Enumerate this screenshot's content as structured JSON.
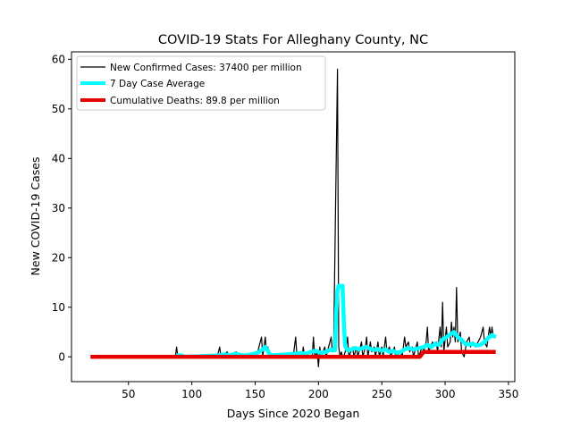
{
  "chart_data": {
    "type": "line",
    "title": "COVID-19 Stats For Alleghany County, NC",
    "xlabel": "Days Since 2020 Began",
    "ylabel": "New COVID-19 Cases",
    "xlim": [
      5,
      355
    ],
    "ylim": [
      -5,
      61.5
    ],
    "xticks": [
      50,
      100,
      150,
      200,
      250,
      300,
      350
    ],
    "yticks": [
      0,
      10,
      20,
      30,
      40,
      50,
      60
    ],
    "grid": false,
    "legend_position": "top-left",
    "series": [
      {
        "name": "New Confirmed Cases: 37400 per million",
        "color": "#000000",
        "points": [
          [
            20,
            0
          ],
          [
            87,
            0
          ],
          [
            88,
            2
          ],
          [
            89,
            0
          ],
          [
            120,
            0
          ],
          [
            122,
            2
          ],
          [
            123,
            0
          ],
          [
            128,
            1
          ],
          [
            129,
            0
          ],
          [
            135,
            1
          ],
          [
            136,
            0
          ],
          [
            148,
            0
          ],
          [
            150,
            1
          ],
          [
            151,
            0
          ],
          [
            155,
            4
          ],
          [
            156,
            0
          ],
          [
            158,
            4
          ],
          [
            159,
            1
          ],
          [
            160,
            2
          ],
          [
            161,
            0
          ],
          [
            180,
            0
          ],
          [
            182,
            4
          ],
          [
            183,
            0
          ],
          [
            187,
            0
          ],
          [
            188,
            2
          ],
          [
            189,
            0
          ],
          [
            195,
            0
          ],
          [
            196,
            4
          ],
          [
            197,
            0
          ],
          [
            199,
            1
          ],
          [
            200,
            -2
          ],
          [
            201,
            2
          ],
          [
            202,
            0
          ],
          [
            205,
            2
          ],
          [
            206,
            0
          ],
          [
            210,
            4
          ],
          [
            211,
            1
          ],
          [
            212,
            2
          ],
          [
            215,
            58
          ],
          [
            216,
            2
          ],
          [
            217,
            0
          ],
          [
            218,
            1
          ],
          [
            219,
            0
          ],
          [
            220,
            0
          ],
          [
            222,
            2
          ],
          [
            223,
            4
          ],
          [
            224,
            0
          ],
          [
            227,
            2
          ],
          [
            228,
            0
          ],
          [
            230,
            2
          ],
          [
            231,
            0
          ],
          [
            234,
            3
          ],
          [
            235,
            0
          ],
          [
            237,
            2
          ],
          [
            238,
            4
          ],
          [
            239,
            0
          ],
          [
            241,
            3
          ],
          [
            242,
            1
          ],
          [
            244,
            2
          ],
          [
            245,
            0
          ],
          [
            247,
            3
          ],
          [
            248,
            0
          ],
          [
            250,
            2
          ],
          [
            251,
            0
          ],
          [
            253,
            4
          ],
          [
            254,
            1
          ],
          [
            256,
            2
          ],
          [
            257,
            0
          ],
          [
            260,
            2
          ],
          [
            261,
            0
          ],
          [
            265,
            1
          ],
          [
            266,
            0
          ],
          [
            268,
            4
          ],
          [
            269,
            2
          ],
          [
            271,
            3
          ],
          [
            272,
            1
          ],
          [
            274,
            2
          ],
          [
            275,
            0
          ],
          [
            278,
            3
          ],
          [
            279,
            0
          ],
          [
            282,
            2
          ],
          [
            283,
            1
          ],
          [
            285,
            3
          ],
          [
            286,
            6
          ],
          [
            287,
            1
          ],
          [
            290,
            3
          ],
          [
            291,
            2
          ],
          [
            293,
            3
          ],
          [
            294,
            1
          ],
          [
            296,
            6
          ],
          [
            297,
            2
          ],
          [
            298,
            11
          ],
          [
            299,
            1
          ],
          [
            301,
            6
          ],
          [
            302,
            2
          ],
          [
            304,
            3
          ],
          [
            305,
            7
          ],
          [
            306,
            4
          ],
          [
            307,
            6
          ],
          [
            308,
            3
          ],
          [
            309,
            14
          ],
          [
            310,
            3
          ],
          [
            312,
            5
          ],
          [
            313,
            1
          ],
          [
            315,
            0
          ],
          [
            317,
            3
          ],
          [
            319,
            4
          ],
          [
            320,
            2
          ],
          [
            322,
            3
          ],
          [
            324,
            2
          ],
          [
            326,
            3
          ],
          [
            328,
            4
          ],
          [
            330,
            6
          ],
          [
            331,
            3
          ],
          [
            333,
            2
          ],
          [
            335,
            6
          ],
          [
            336,
            4
          ],
          [
            337,
            6
          ],
          [
            338,
            4
          ],
          [
            340,
            4
          ]
        ]
      },
      {
        "name": "7 Day Case Average",
        "color": "#00ffff",
        "points": [
          [
            88,
            0.3
          ],
          [
            92,
            0.3
          ],
          [
            95,
            0
          ],
          [
            122,
            0.3
          ],
          [
            126,
            0.5
          ],
          [
            130,
            0.3
          ],
          [
            134,
            0.6
          ],
          [
            138,
            0.4
          ],
          [
            142,
            0.3
          ],
          [
            150,
            0.6
          ],
          [
            153,
            1.0
          ],
          [
            156,
            1.5
          ],
          [
            158,
            2.0
          ],
          [
            160,
            1.2
          ],
          [
            162,
            0.3
          ],
          [
            182,
            0.6
          ],
          [
            186,
            0.8
          ],
          [
            190,
            0.6
          ],
          [
            194,
            1.0
          ],
          [
            198,
            1.2
          ],
          [
            202,
            0.8
          ],
          [
            206,
            1.0
          ],
          [
            210,
            1.5
          ],
          [
            213,
            1.3
          ],
          [
            214,
            9
          ],
          [
            215,
            13.5
          ],
          [
            216,
            14.3
          ],
          [
            219,
            14.3
          ],
          [
            220,
            7
          ],
          [
            221,
            2.2
          ],
          [
            223,
            1.3
          ],
          [
            226,
            1.5
          ],
          [
            229,
            1.8
          ],
          [
            232,
            1.5
          ],
          [
            235,
            1.8
          ],
          [
            238,
            2.0
          ],
          [
            241,
            1.6
          ],
          [
            244,
            1.4
          ],
          [
            247,
            1.6
          ],
          [
            250,
            1.2
          ],
          [
            253,
            1.5
          ],
          [
            256,
            1.0
          ],
          [
            259,
            1.2
          ],
          [
            262,
            0.8
          ],
          [
            265,
            1.0
          ],
          [
            268,
            1.5
          ],
          [
            271,
            1.8
          ],
          [
            274,
            1.5
          ],
          [
            277,
            1.6
          ],
          [
            280,
            1.8
          ],
          [
            283,
            2.0
          ],
          [
            286,
            2.4
          ],
          [
            289,
            2.0
          ],
          [
            292,
            2.6
          ],
          [
            295,
            2.4
          ],
          [
            298,
            3.5
          ],
          [
            301,
            4.0
          ],
          [
            304,
            4.5
          ],
          [
            307,
            5.0
          ],
          [
            310,
            4.0
          ],
          [
            313,
            3.4
          ],
          [
            316,
            2.6
          ],
          [
            319,
            2.5
          ],
          [
            322,
            2.6
          ],
          [
            325,
            2.3
          ],
          [
            328,
            2.4
          ],
          [
            331,
            3.0
          ],
          [
            334,
            3.8
          ],
          [
            337,
            4.4
          ],
          [
            340,
            4.0
          ]
        ]
      },
      {
        "name": "Cumulative Deaths: 89.8 per million",
        "color": "#e60000",
        "points": [
          [
            20,
            0
          ],
          [
            280,
            0
          ],
          [
            283,
            1
          ],
          [
            340,
            1
          ]
        ]
      }
    ]
  }
}
